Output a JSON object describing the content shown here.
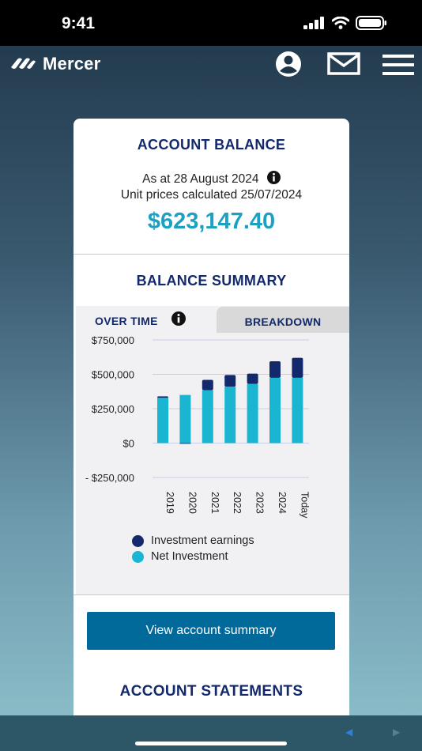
{
  "status_bar": {
    "time": "9:41"
  },
  "header": {
    "brand": "Mercer",
    "icons": [
      "mercer-logo-icon",
      "profile-icon",
      "mail-icon",
      "menu-icon"
    ]
  },
  "account_balance": {
    "title": "ACCOUNT BALANCE",
    "as_at": "As at 28 August 2024",
    "unit_prices": "Unit prices calculated 25/07/2024",
    "amount": "$623,147.40"
  },
  "balance_summary": {
    "title": "BALANCE SUMMARY",
    "tabs": [
      {
        "label": "OVER TIME",
        "selected": true
      },
      {
        "label": "BREAKDOWN",
        "selected": false
      }
    ]
  },
  "chart_data": {
    "type": "bar",
    "stacked": true,
    "categories": [
      "2019",
      "2020",
      "2021",
      "2022",
      "2023",
      "2024",
      "Today"
    ],
    "series": [
      {
        "name": "Net Investment",
        "color": "#1ab5d0",
        "values": [
          330000,
          350000,
          385000,
          410000,
          430000,
          475000,
          475000
        ]
      },
      {
        "name": "Investment earnings",
        "color": "#13296b",
        "values": [
          10000,
          -5000,
          75000,
          85000,
          75000,
          120000,
          145000
        ]
      }
    ],
    "y_ticks": [
      {
        "value": 750000,
        "label": "$750,000"
      },
      {
        "value": 500000,
        "label": "$500,000"
      },
      {
        "value": 250000,
        "label": "$250,000"
      },
      {
        "value": 0,
        "label": "$0"
      },
      {
        "value": -250000,
        "label": "- $250,000"
      }
    ],
    "ylim": [
      -250000,
      750000
    ],
    "grid": true,
    "legend_position": "bottom"
  },
  "actions": {
    "view_summary": "View account summary"
  },
  "account_statements": {
    "title": "ACCOUNT STATEMENTS"
  },
  "colors": {
    "navy": "#13296b",
    "teal": "#1ca1c3",
    "button": "#02699b"
  }
}
